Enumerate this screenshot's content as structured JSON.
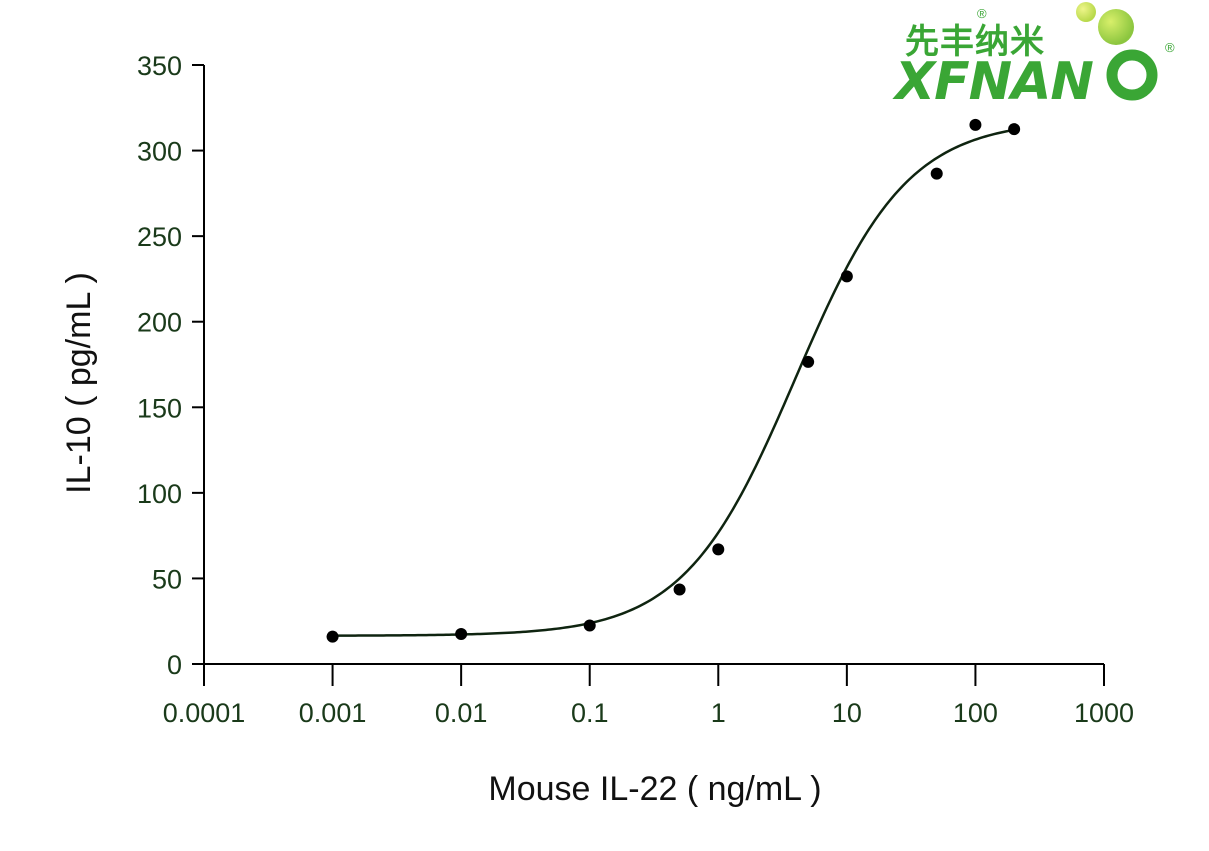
{
  "logo": {
    "cn_text": "先丰纳米",
    "en_text": "XFNAN",
    "registered_mark": "®",
    "brand_color": "#3aa635",
    "accent_color": "#8cc63f"
  },
  "chart_data": {
    "type": "scatter",
    "title": "",
    "xlabel": "Mouse IL-22 ( ng/mL )",
    "ylabel": "IL-10 ( pg/mL )",
    "x_scale": "log",
    "xlim": [
      0.0001,
      1000
    ],
    "ylim": [
      0,
      350
    ],
    "x_ticks": [
      0.0001,
      0.001,
      0.01,
      0.1,
      1,
      10,
      100,
      1000
    ],
    "x_tick_labels": [
      "0.0001",
      "0.001",
      "0.01",
      "0.1",
      "1",
      "10",
      "100",
      "1000"
    ],
    "y_ticks": [
      0,
      50,
      100,
      150,
      200,
      250,
      300,
      350
    ],
    "y_tick_labels": [
      "0",
      "50",
      "100",
      "150",
      "200",
      "250",
      "300",
      "350"
    ],
    "grid": false,
    "series": [
      {
        "x": [
          0.001,
          0.01,
          0.1,
          0.5,
          1,
          5,
          10,
          50,
          100,
          200
        ],
        "y": [
          16,
          17.5,
          22.5,
          43.5,
          67,
          176.5,
          226.5,
          286.5,
          315,
          312.5
        ]
      }
    ],
    "fit_curve": {
      "type": "4PL",
      "bottom": 16.5,
      "top": 318,
      "ec50": 4,
      "hill_slope": 1.0
    },
    "colors": {
      "marker": "#000000",
      "curve": "#0f2410",
      "axis": "#000000",
      "tick_text": "#1a3a1a"
    }
  }
}
